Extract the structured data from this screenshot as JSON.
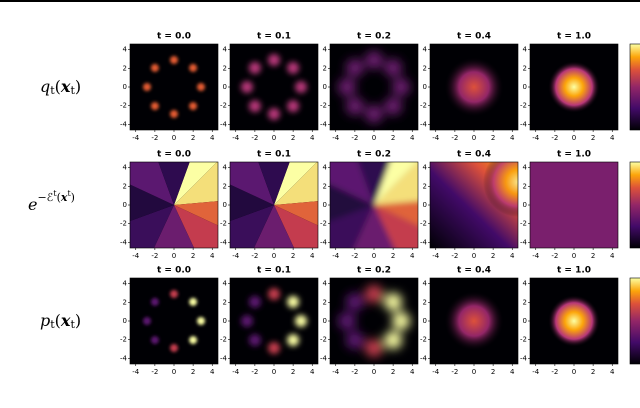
{
  "chart_data": {
    "type": "heatmap-grid",
    "titles": [
      "t = 0.0",
      "t = 0.1",
      "t = 0.2",
      "t = 0.4",
      "t = 1.0"
    ],
    "rows": [
      {
        "label": [
          {
            "text": "q"
          },
          {
            "text": "t",
            "style": "sub"
          },
          {
            "text": "("
          },
          {
            "text": "x",
            "style": "bold"
          },
          {
            "text": "t",
            "style": "sub"
          },
          {
            "text": ")"
          }
        ]
      },
      {
        "label": [
          {
            "text": "e"
          },
          {
            "text": "−ℰ",
            "style": "sup"
          },
          {
            "text": "t",
            "style": "supsub"
          },
          {
            "text": "(",
            "style": "sup"
          },
          {
            "text": "x",
            "style": "supbold"
          },
          {
            "text": "t",
            "style": "supsub"
          },
          {
            "text": ")",
            "style": "sup"
          }
        ]
      },
      {
        "label": [
          {
            "text": "p"
          },
          {
            "text": "t",
            "style": "sub"
          },
          {
            "text": "("
          },
          {
            "text": "x",
            "style": "bold"
          },
          {
            "text": "t",
            "style": "sub"
          },
          {
            "text": ")"
          }
        ]
      }
    ],
    "xlim": [
      -4.6,
      4.6
    ],
    "ylim": [
      -4.6,
      4.6
    ],
    "xticks": [
      -4,
      -2,
      0,
      2,
      4
    ],
    "yticks": [
      -4,
      -2,
      0,
      2,
      4
    ],
    "colormap": "inferno"
  }
}
